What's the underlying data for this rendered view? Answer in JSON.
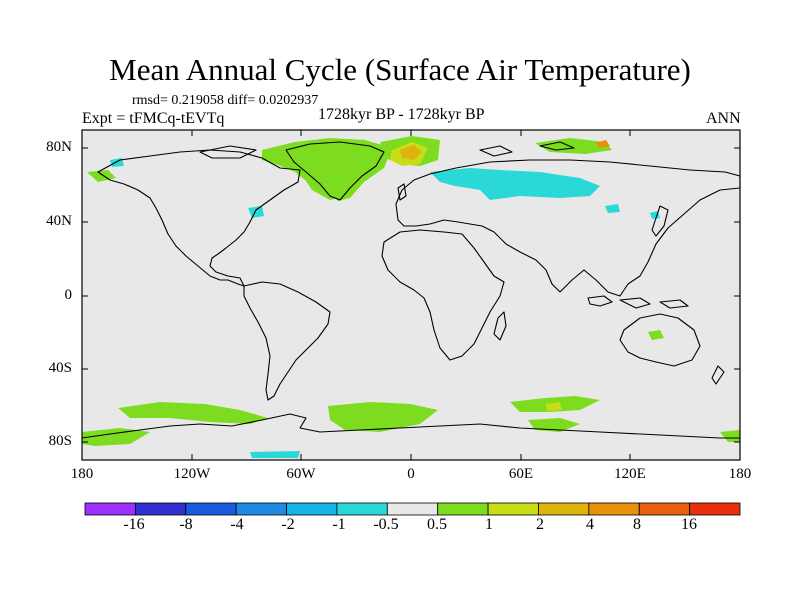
{
  "title": "Mean Annual Cycle (Surface Air Temperature)",
  "stats": "rmsd= 0.219058 diff= 0.0202937",
  "experiment": "Expt = tFMCq-tEVTq",
  "period": "1728kyr BP - 1728kyr BP",
  "season": "ANN",
  "map": {
    "lat_labels": [
      "80N",
      "40N",
      "0",
      "40S",
      "80S"
    ],
    "lat_values": [
      80,
      40,
      0,
      -40,
      -80
    ],
    "lon_labels": [
      "180",
      "120W",
      "60W",
      "0",
      "60E",
      "120E",
      "180"
    ],
    "lon_values": [
      -180,
      -120,
      -60,
      0,
      60,
      120,
      180
    ],
    "lon_range": [
      -180,
      180
    ],
    "lat_range": [
      -90,
      90
    ],
    "background_color": "#e8e8e8"
  },
  "colorbar": {
    "colors": [
      "#9b30ff",
      "#3030d0",
      "#1a5adf",
      "#1e8ae6",
      "#18b4e6",
      "#2bd8d8",
      "#e8e8e8",
      "#7ddc1f",
      "#c8dc18",
      "#ddb30e",
      "#e8920c",
      "#e86010",
      "#e8300c"
    ],
    "labels": [
      "-16",
      "-8",
      "-4",
      "-2",
      "-1",
      "-0.5",
      "0.5",
      "1",
      "2",
      "4",
      "8",
      "16"
    ]
  }
}
